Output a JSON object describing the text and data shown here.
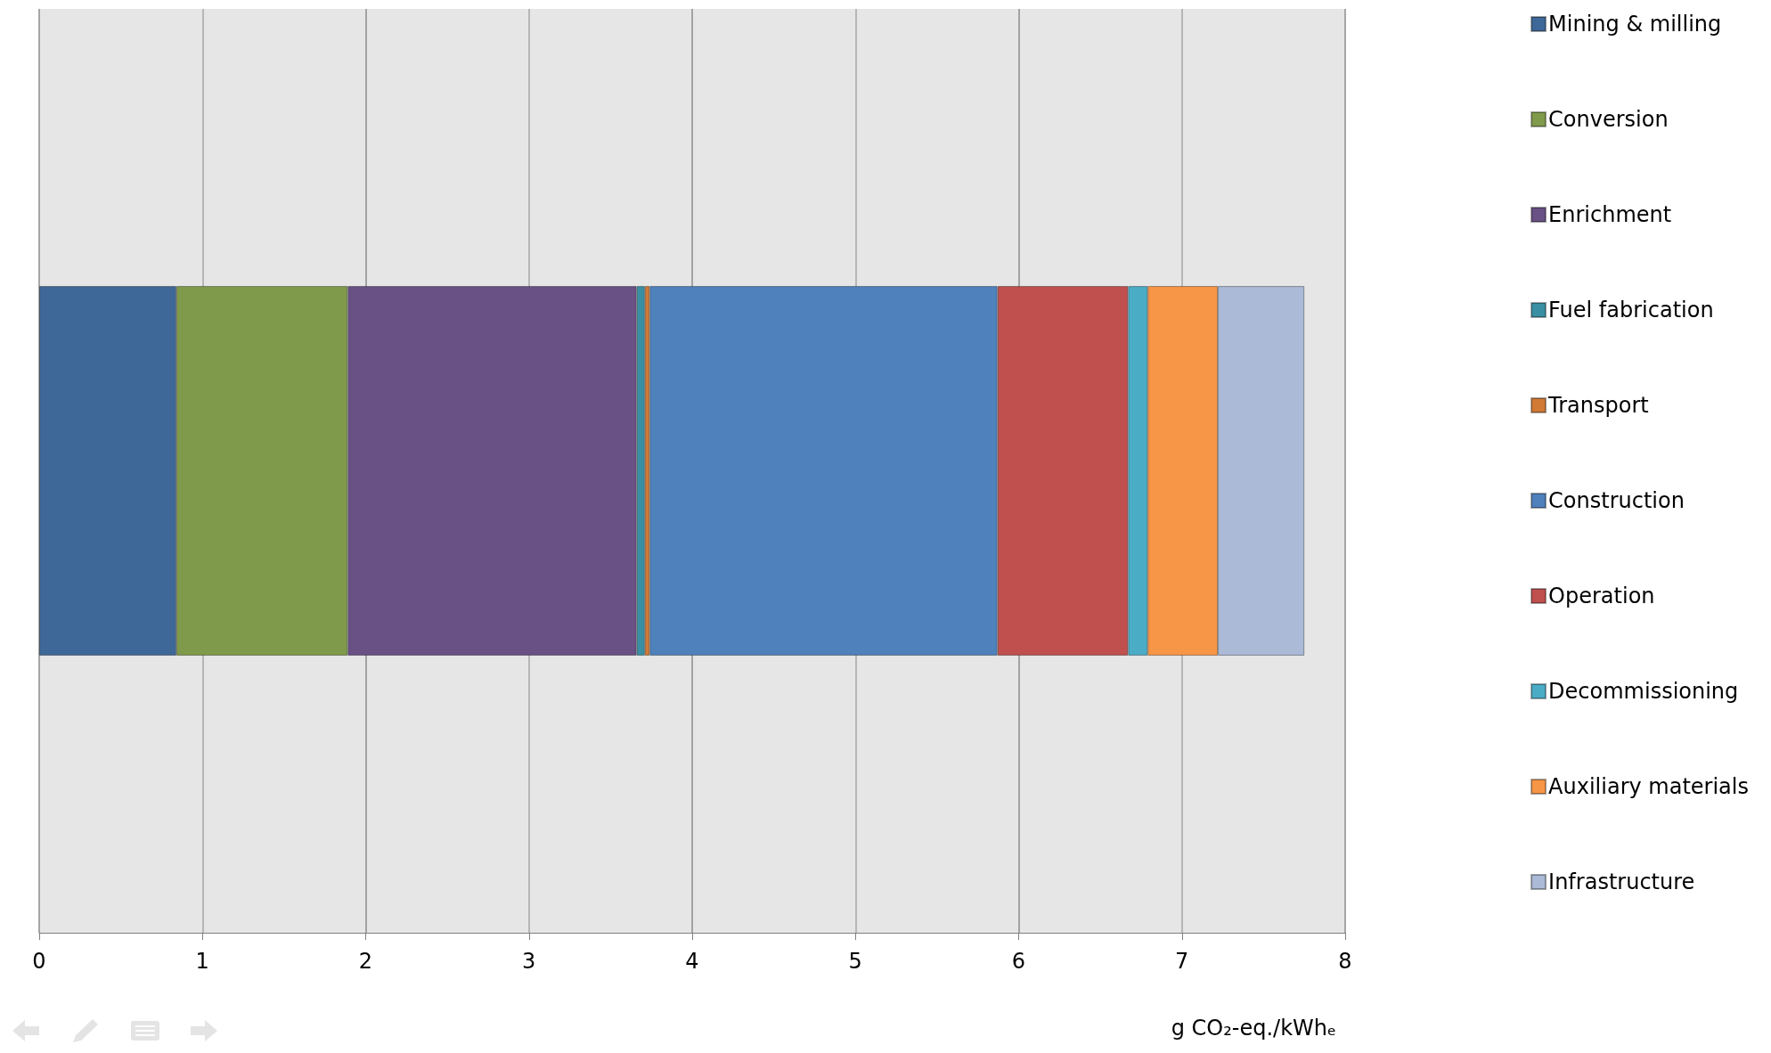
{
  "chart_data": {
    "type": "bar",
    "orientation": "horizontal",
    "stacked": true,
    "xlabel": "g CO₂-eq./kWhₑ",
    "categories": [
      null
    ],
    "series": [
      {
        "name": "Mining & milling",
        "color": "#3e6898",
        "values": [
          0.84
        ]
      },
      {
        "name": "Conversion",
        "color": "#7f9a4a",
        "values": [
          1.05
        ]
      },
      {
        "name": "Enrichment",
        "color": "#695185",
        "values": [
          1.77
        ]
      },
      {
        "name": "Fuel fabrication",
        "color": "#3a8fa3",
        "values": [
          0.05
        ]
      },
      {
        "name": "Transport",
        "color": "#d07a35",
        "values": [
          0.03
        ]
      },
      {
        "name": "Construction",
        "color": "#4f81bc",
        "values": [
          2.13
        ]
      },
      {
        "name": "Operation",
        "color": "#c0504d",
        "values": [
          0.8
        ]
      },
      {
        "name": "Decommissioning",
        "color": "#4bacc6",
        "values": [
          0.12
        ]
      },
      {
        "name": "Auxiliary materials",
        "color": "#f79646",
        "values": [
          0.43
        ]
      },
      {
        "name": "Infrastructure",
        "color": "#aabad7",
        "values": [
          0.53
        ]
      }
    ],
    "xlim": [
      0,
      8
    ],
    "xticks": [
      0,
      1,
      2,
      3,
      4,
      5,
      6,
      7,
      8
    ],
    "grid": "x",
    "legend": "right",
    "tick_labels": "x"
  }
}
